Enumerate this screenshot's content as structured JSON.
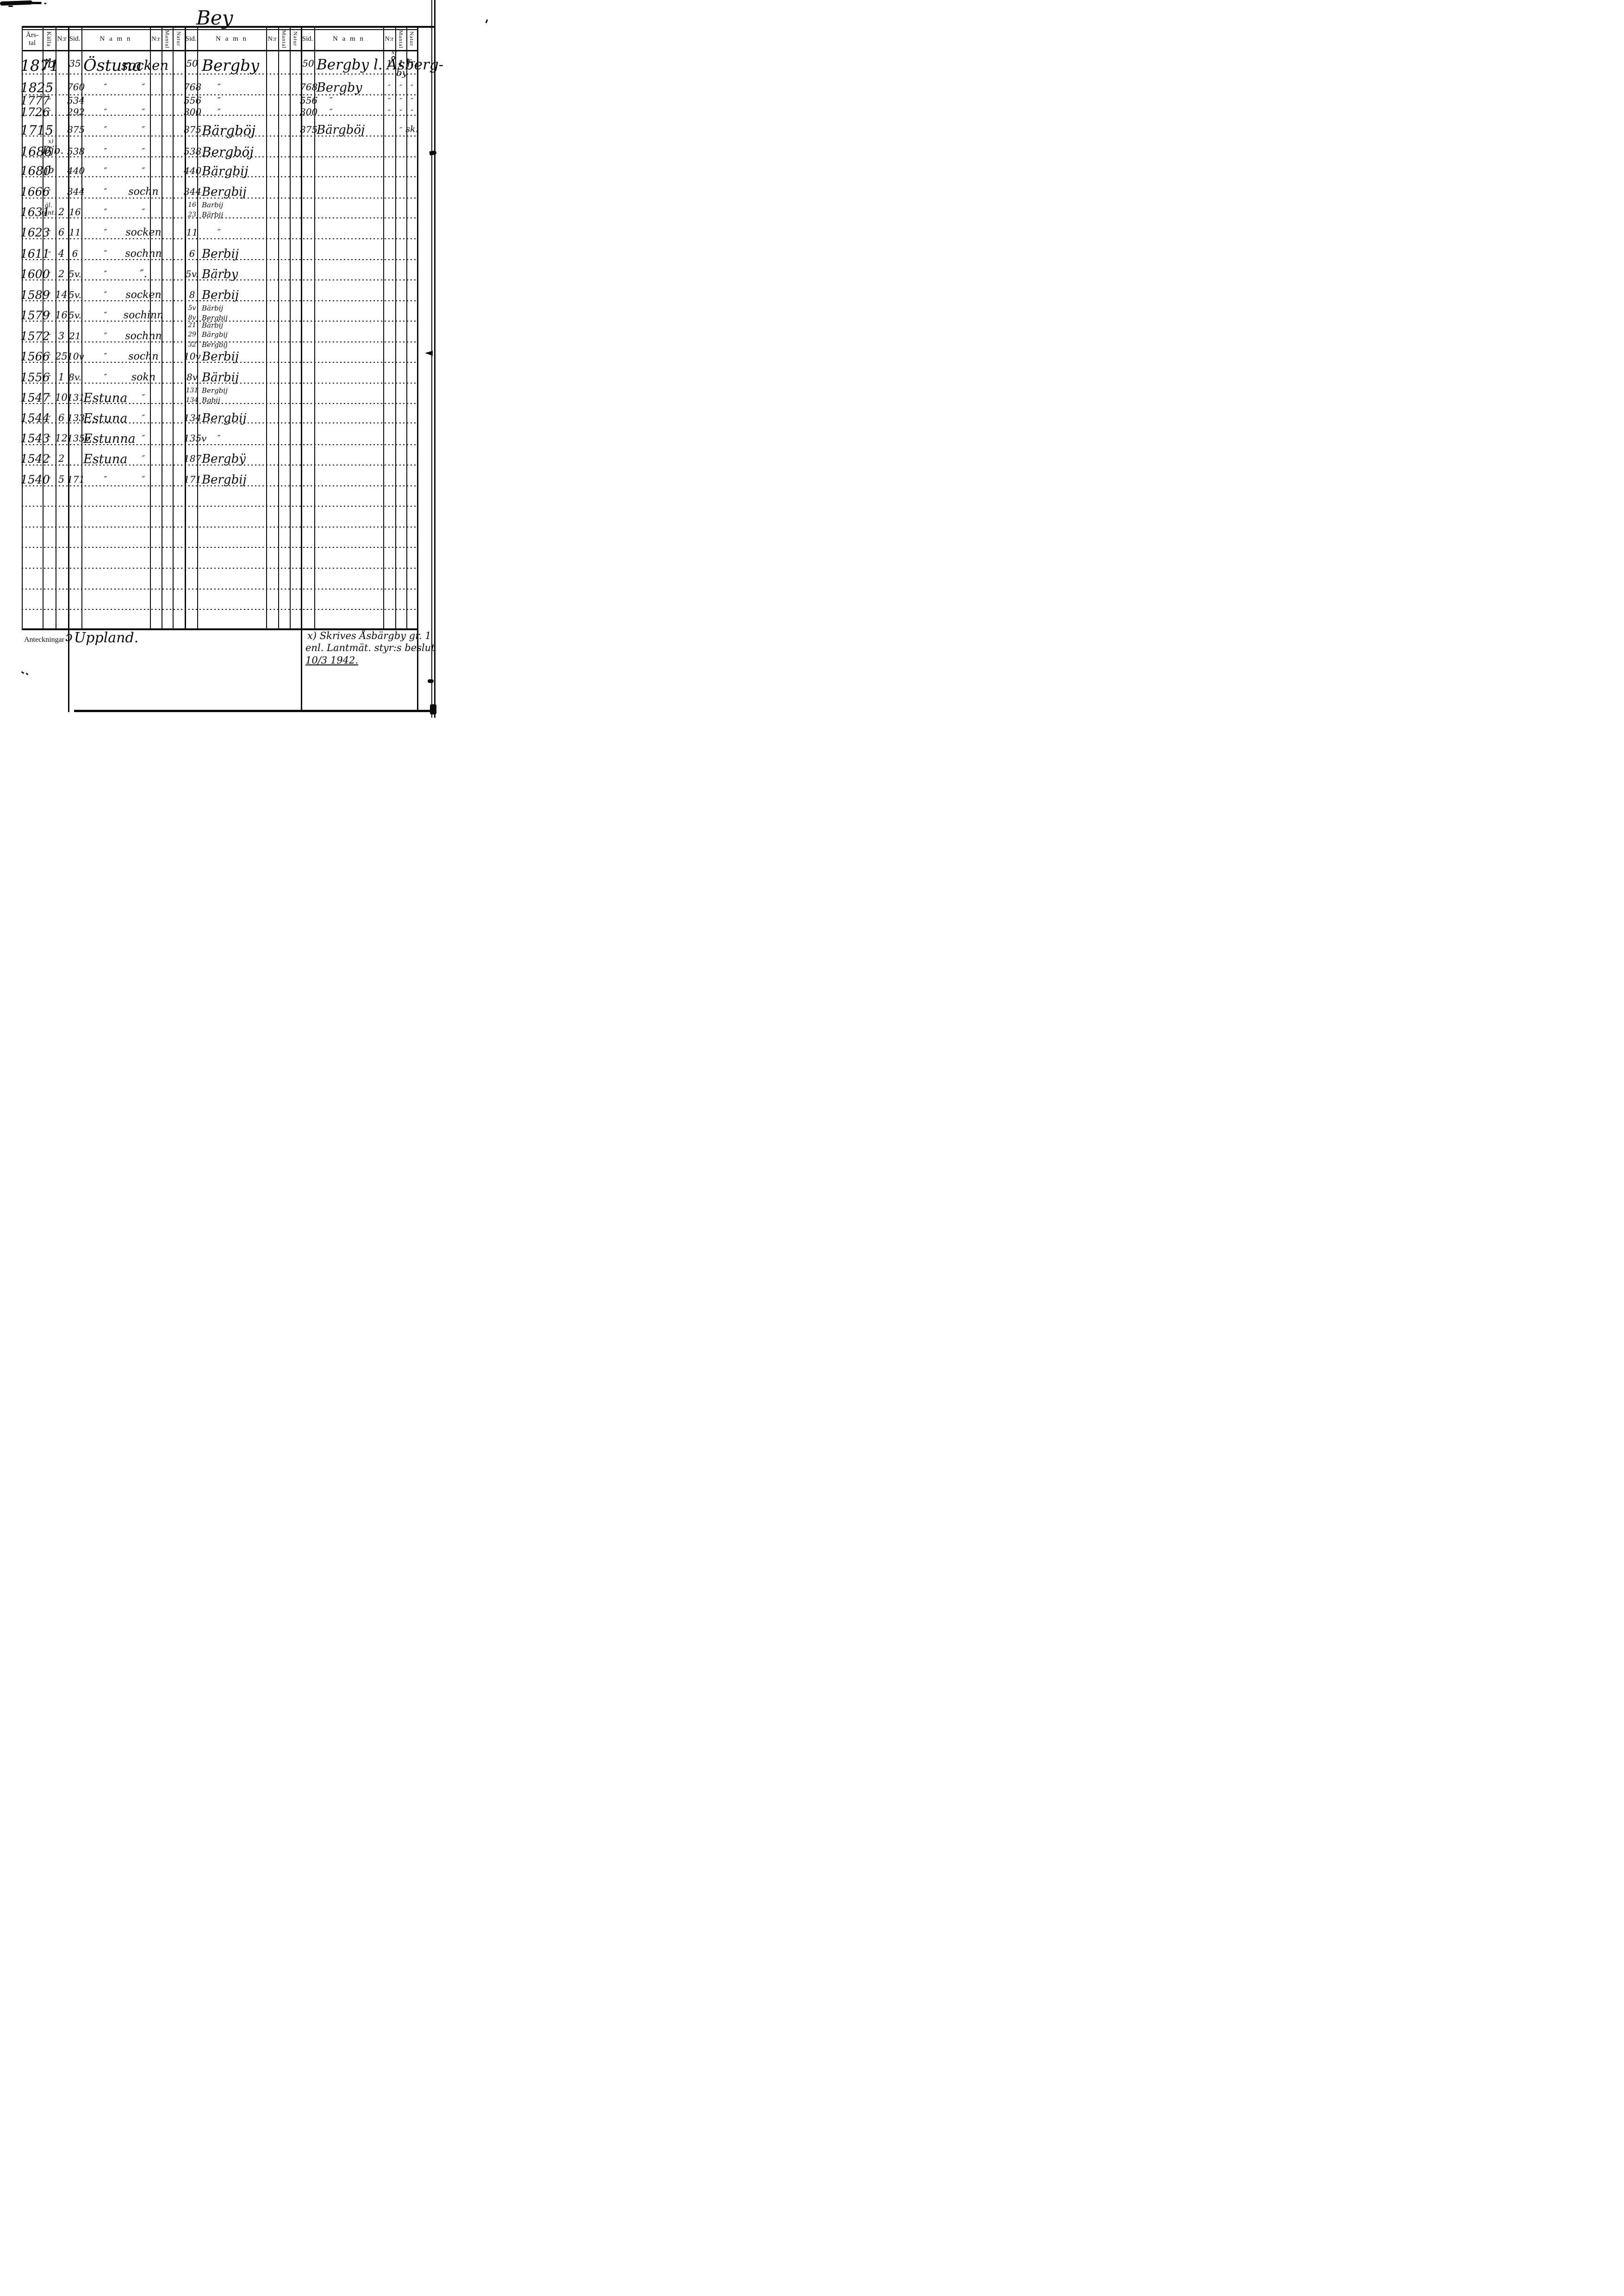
{
  "page_heading_hw": "Bey",
  "header": {
    "arstal1": "Års-",
    "arstal2": "tal",
    "kalla": "Källa",
    "nr": "N:r",
    "sid": "Sid.",
    "namn": "N a m n",
    "mantal": "Mantal",
    "natur": "Natur"
  },
  "anteckningar": {
    "label": "Anteckningar",
    "annotation_mark": "ɔ",
    "annotation_text": "Uppland.",
    "footnote_line1": "x) Skrives Åsbärgby gr. 1",
    "footnote_line2": "enl. Lantmät. styr:s beslut",
    "footnote_line3": "10/3 1942."
  },
  "ditto": "″",
  "rows": [
    {
      "year": "1871",
      "kalla": "jb",
      "nr": "",
      "sid": "35",
      "namn": "Östuna",
      "namn2": "socken",
      "entries": [
        {
          "sid": "50",
          "namn": "Bergby"
        }
      ],
      "right": {
        "sid": "50",
        "namn": "Bergby l. Åsberg-",
        "namn_cont": "by",
        "sup": "x)",
        "nr": "1",
        "mantal": "1",
        "natur": "fr."
      }
    },
    {
      "year": "1825",
      "kalla": "″",
      "nr": "",
      "sid": "760",
      "namn": "″",
      "namn2": "″",
      "entries": [
        {
          "sid": "768",
          "namn": "″"
        }
      ],
      "right": {
        "sid": "768",
        "namn": "Bergby",
        "namn_cont": "",
        "sup": "",
        "nr": "″",
        "mantal": "″",
        "natur": "″"
      }
    },
    {
      "year": "1777",
      "kalla": "″",
      "nr": "",
      "sid": "534",
      "namn": "",
      "namn2": "",
      "entries": [
        {
          "sid": "556",
          "namn": "″"
        }
      ],
      "right": {
        "sid": "556",
        "namn": "″",
        "namn_cont": "",
        "sup": "",
        "nr": "″",
        "mantal": "″",
        "natur": "″"
      }
    },
    {
      "year": "1726",
      "kalla": "″",
      "nr": "",
      "sid": "292",
      "namn": "″",
      "namn2": "″",
      "entries": [
        {
          "sid": "300",
          "namn": "″"
        }
      ],
      "right": {
        "sid": "300",
        "namn": "″",
        "namn_cont": "",
        "sup": "",
        "nr": "″",
        "mantal": "″",
        "natur": "″"
      }
    },
    {
      "year": "1715",
      "kalla": "″",
      "nr": "",
      "sid": "875",
      "namn": "″",
      "namn2": "″",
      "entries": [
        {
          "sid": "875",
          "namn": "Bärgböj"
        }
      ],
      "right": {
        "sid": "875",
        "namn": "Bärgböj",
        "namn_cont": "",
        "sup": "",
        "nr": "",
        "mantal": "″",
        "natur": "sk."
      }
    },
    {
      "year": "1686",
      "kalla": "Djb.",
      "kalla_sup": "x)",
      "nr": "",
      "sid": "538",
      "namn": "″",
      "namn2": "″",
      "entries": [
        {
          "sid": "538",
          "namn": "Bergböj"
        }
      ],
      "right": null
    },
    {
      "year": "1680",
      "kalla": "jb",
      "nr": "",
      "sid": "440",
      "namn": "″",
      "namn2": "″",
      "entries": [
        {
          "sid": "440",
          "namn": "Bärgbij"
        }
      ],
      "right": null
    },
    {
      "year": "1666",
      "kalla": "″",
      "nr": "",
      "sid": "344",
      "namn": "″",
      "namn2": "sochn",
      "entries": [
        {
          "sid": "344",
          "namn": "Bergbij"
        }
      ],
      "right": null
    },
    {
      "year": "1631",
      "kalla": "äl.",
      "kalla2": "ränt.",
      "nr": "2",
      "sid": "16",
      "namn": "″",
      "namn2": "″",
      "entries": [
        {
          "sid": "16",
          "namn": "Barbij"
        },
        {
          "sid": "23",
          "namn": "Bärbij"
        }
      ],
      "right": null
    },
    {
      "year": "1623",
      "kalla": "″",
      "nr": "6",
      "sid": "11",
      "namn": "″",
      "namn2": "socken",
      "entries": [
        {
          "sid": "11",
          "namn": "″"
        }
      ],
      "right": null
    },
    {
      "year": "1611",
      "kalla": "″",
      "nr": "4",
      "sid": "6",
      "namn": "″",
      "namn2": "sochnn",
      "entries": [
        {
          "sid": "6",
          "namn": "Berbij"
        }
      ],
      "right": null
    },
    {
      "year": "1600",
      "kalla": "″",
      "nr": "2",
      "sid": "5v.",
      "namn": "″",
      "namn2": "″.",
      "entries": [
        {
          "sid": "5v.",
          "namn": "Bärby"
        }
      ],
      "right": null
    },
    {
      "year": "1589",
      "kalla": "″",
      "nr": "14",
      "sid": "5v.",
      "namn": "″",
      "namn2": "socken",
      "entries": [
        {
          "sid": "8",
          "namn": "Berbij"
        }
      ],
      "right": null
    },
    {
      "year": "1579",
      "kalla": "″",
      "nr": "16",
      "sid": "5v.",
      "namn": "″",
      "namn2": "sochinn",
      "entries": [
        {
          "sid": "5v",
          "namn": "Bärbij"
        },
        {
          "sid": "8v",
          "namn": "Bergbij"
        }
      ],
      "right": null
    },
    {
      "year": "1572",
      "kalla": "″",
      "nr": "3",
      "sid": "21",
      "namn": "″",
      "namn2": "sochnn",
      "entries": [
        {
          "sid": "21",
          "namn": "Bärbij"
        },
        {
          "sid": "29",
          "namn": "Bärgbij"
        },
        {
          "sid": "32",
          "namn": "Bergbij"
        }
      ],
      "right": null
    },
    {
      "year": "1566",
      "kalla": "″",
      "nr": "25",
      "sid": "10v",
      "namn": "″",
      "namn2": "sochn",
      "entries": [
        {
          "sid": "10v",
          "namn": "Berbij"
        }
      ],
      "right": null
    },
    {
      "year": "1556",
      "kalla": "″",
      "nr": "1",
      "sid": "8v.",
      "namn": "″",
      "namn2": "sokn",
      "entries": [
        {
          "sid": "8v",
          "namn": "Bärbij"
        }
      ],
      "right": null
    },
    {
      "year": "1547",
      "kalla": "″",
      "nr": "10",
      "sid": "131",
      "namn": "Estuna",
      "namn2": "″",
      "entries": [
        {
          "sid": "131",
          "namn": "Bergbij"
        },
        {
          "sid": "134",
          "namn": "Bgbij"
        }
      ],
      "right": null
    },
    {
      "year": "1544",
      "kalla": "″",
      "nr": "6",
      "sid": "133",
      "namn": "Estuna",
      "namn2": "″",
      "entries": [
        {
          "sid": "134",
          "namn": "Bergbij"
        }
      ],
      "right": null
    },
    {
      "year": "1543",
      "kalla": "″",
      "nr": "12",
      "sid": "135v.",
      "namn": "Estunna",
      "namn2": "″",
      "entries": [
        {
          "sid": "135v",
          "namn": "″"
        }
      ],
      "right": null
    },
    {
      "year": "1542",
      "kalla": "″",
      "nr": "2",
      "sid": "",
      "namn": "Estuna",
      "namn2": "″",
      "entries": [
        {
          "sid": "187",
          "namn": "Bergbÿ"
        }
      ],
      "right": null
    },
    {
      "year": "1540",
      "kalla": "″",
      "nr": "5",
      "sid": "171",
      "namn": "″",
      "namn2": "″",
      "entries": [
        {
          "sid": "171",
          "namn": "Bergbij"
        }
      ],
      "right": null
    }
  ]
}
